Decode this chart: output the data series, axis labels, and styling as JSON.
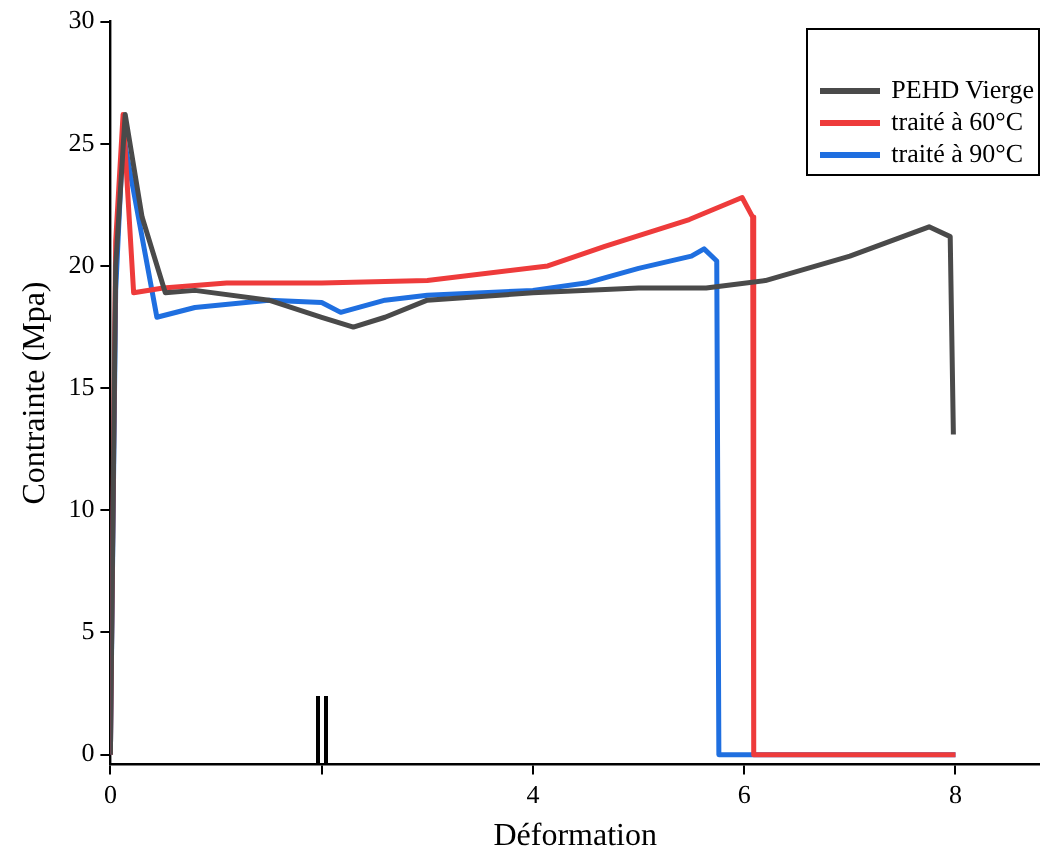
{
  "chart_data": {
    "type": "line",
    "xlabel": "Déformation",
    "ylabel": "Contrainte (Mpa)",
    "xlim": [
      0,
      8.8
    ],
    "xticks": [
      0,
      {
        "value": 2,
        "label": null
      },
      4,
      6,
      8
    ],
    "ylim": [
      -0.4,
      30
    ],
    "yticks": [
      0,
      5,
      10,
      15,
      20,
      25,
      30
    ],
    "grid": false,
    "legend": "top right",
    "marker": "none",
    "line_style": "solid",
    "series": [
      {
        "name": "PEHD Vierge",
        "color": "#4a4a4a",
        "x": [
          0,
          0.05,
          0.14,
          0.3,
          0.52,
          0.8,
          1.5,
          2.0,
          2.3,
          2.6,
          3,
          4,
          5,
          5.64,
          6.2,
          7,
          7.75,
          7.95,
          7.98
        ],
        "values": [
          0,
          20,
          26.2,
          22,
          18.9,
          19,
          18.6,
          17.9,
          17.5,
          17.9,
          18.6,
          18.9,
          19.1,
          19.1,
          19.4,
          20.4,
          21.6,
          21.2,
          13.1
        ]
      },
      {
        "name": "traité à 60°C",
        "color": "#ee3b3b",
        "x": [
          0,
          0.05,
          0.12,
          0.22,
          0.5,
          1.1,
          2,
          3,
          4.14,
          4.68,
          5.48,
          5.98,
          6.08,
          6.09,
          8
        ],
        "values": [
          0,
          21,
          26.2,
          18.9,
          19.1,
          19.3,
          19.3,
          19.4,
          20,
          20.8,
          21.9,
          22.8,
          22,
          0,
          0
        ]
      },
      {
        "name": "traité à 90°C",
        "color": "#1f6fe0",
        "x": [
          0,
          0.05,
          0.12,
          0.44,
          0.8,
          1.5,
          2.0,
          2.18,
          2.6,
          3,
          4,
          4.5,
          5,
          5.5,
          5.62,
          5.74,
          5.76,
          8
        ],
        "values": [
          0,
          19,
          25.4,
          17.9,
          18.3,
          18.6,
          18.5,
          18.1,
          18.6,
          18.8,
          19,
          19.3,
          19.9,
          20.4,
          20.7,
          20.2,
          0,
          0
        ]
      }
    ]
  }
}
